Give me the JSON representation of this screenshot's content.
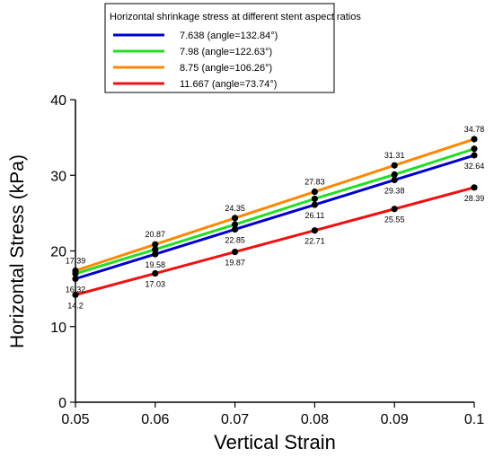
{
  "chart_data": {
    "type": "line",
    "xlabel": "Vertical Strain",
    "ylabel": "Horizontal Stress (kPa)",
    "x": [
      0.05,
      0.06,
      0.07,
      0.08,
      0.09,
      0.1
    ],
    "x_tick_labels": [
      "0.05",
      "0.06",
      "0.07",
      "0.08",
      "0.09",
      "0.1"
    ],
    "xlim": [
      0.05,
      0.1
    ],
    "ylim": [
      0,
      40
    ],
    "y_ticks": [
      0,
      10,
      20,
      30,
      40
    ],
    "grid": false,
    "legend": {
      "title": "Horizontal shrinkage stress at different stent aspect ratios",
      "placement": "top-center"
    },
    "series": [
      {
        "name": "7.638   (angle=132.84°)",
        "color": "#0000cc",
        "values": [
          16.32,
          19.58,
          22.85,
          26.11,
          29.38,
          32.64
        ],
        "labels": [
          "16.32",
          "19.58",
          "22.85",
          "26.11",
          "29.38",
          "32.64"
        ]
      },
      {
        "name": "7.98   (angle=122.63°)",
        "color": "#22dd22",
        "values": [
          17.0,
          20.2,
          23.5,
          26.9,
          30.1,
          33.5
        ],
        "labels": [
          "",
          "",
          "",
          "",
          "",
          ""
        ]
      },
      {
        "name": "8.75   (angle=106.26°)",
        "color": "#ff8800",
        "values": [
          17.39,
          20.87,
          24.35,
          27.83,
          31.31,
          34.78
        ],
        "labels": [
          "17.39",
          "20.87",
          "24.35",
          "27.83",
          "31.31",
          "34.78"
        ]
      },
      {
        "name": "11.667   (angle=73.74°)",
        "color": "#ee1111",
        "values": [
          14.2,
          17.03,
          19.87,
          22.71,
          25.55,
          28.39
        ],
        "labels": [
          "14.2",
          "17.03",
          "19.87",
          "22.71",
          "25.55",
          "28.39"
        ]
      }
    ]
  }
}
